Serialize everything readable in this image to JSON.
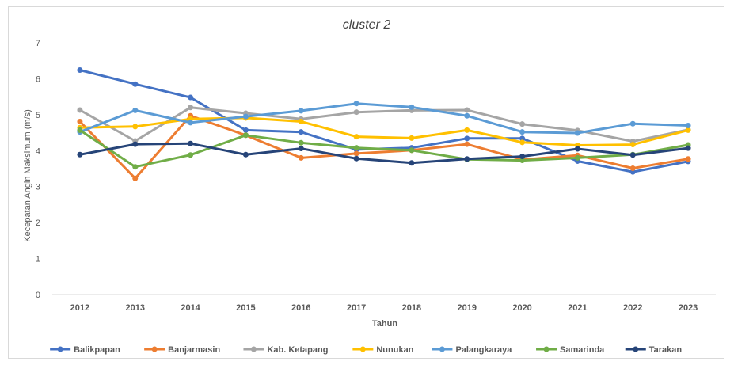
{
  "chart_data": {
    "type": "line",
    "title": "cluster 2",
    "xlabel": "Tahun",
    "ylabel": "Kecepatan Angin Maksimum (m/s)",
    "ylim": [
      0,
      7
    ],
    "yticks": [
      0,
      1,
      2,
      3,
      4,
      5,
      6,
      7
    ],
    "grid": false,
    "legend_position": "bottom",
    "categories": [
      "2012",
      "2013",
      "2014",
      "2015",
      "2016",
      "2017",
      "2018",
      "2019",
      "2020",
      "2021",
      "2022",
      "2023"
    ],
    "series": [
      {
        "name": "Balikpapan",
        "color": "#4472C4",
        "values": [
          6.24,
          5.85,
          5.48,
          4.57,
          4.52,
          4.03,
          4.08,
          4.34,
          4.34,
          3.71,
          3.41,
          3.7
        ]
      },
      {
        "name": "Banjarmasin",
        "color": "#ED7D31",
        "values": [
          4.81,
          3.23,
          4.97,
          4.43,
          3.8,
          3.92,
          4.01,
          4.18,
          3.75,
          3.87,
          3.51,
          3.77
        ]
      },
      {
        "name": "Kab. Ketapang",
        "color": "#A5A5A5",
        "values": [
          5.13,
          4.27,
          5.2,
          5.04,
          4.88,
          5.07,
          5.12,
          5.13,
          4.74,
          4.56,
          4.26,
          4.58
        ]
      },
      {
        "name": "Nunukan",
        "color": "#FFC000",
        "values": [
          4.64,
          4.67,
          4.88,
          4.91,
          4.81,
          4.39,
          4.35,
          4.57,
          4.23,
          4.15,
          4.17,
          4.57
        ]
      },
      {
        "name": "Palangkaraya",
        "color": "#5B9BD5",
        "values": [
          4.52,
          5.12,
          4.78,
          4.95,
          5.11,
          5.31,
          5.21,
          4.97,
          4.52,
          4.49,
          4.75,
          4.7
        ]
      },
      {
        "name": "Samarinda",
        "color": "#70AD47",
        "values": [
          4.57,
          3.55,
          3.88,
          4.43,
          4.22,
          4.08,
          4.01,
          3.76,
          3.73,
          3.8,
          3.89,
          4.16
        ]
      },
      {
        "name": "Tarakan",
        "color": "#264478",
        "values": [
          3.89,
          4.18,
          4.2,
          3.89,
          4.06,
          3.78,
          3.66,
          3.77,
          3.84,
          4.05,
          3.88,
          4.07
        ]
      }
    ]
  }
}
